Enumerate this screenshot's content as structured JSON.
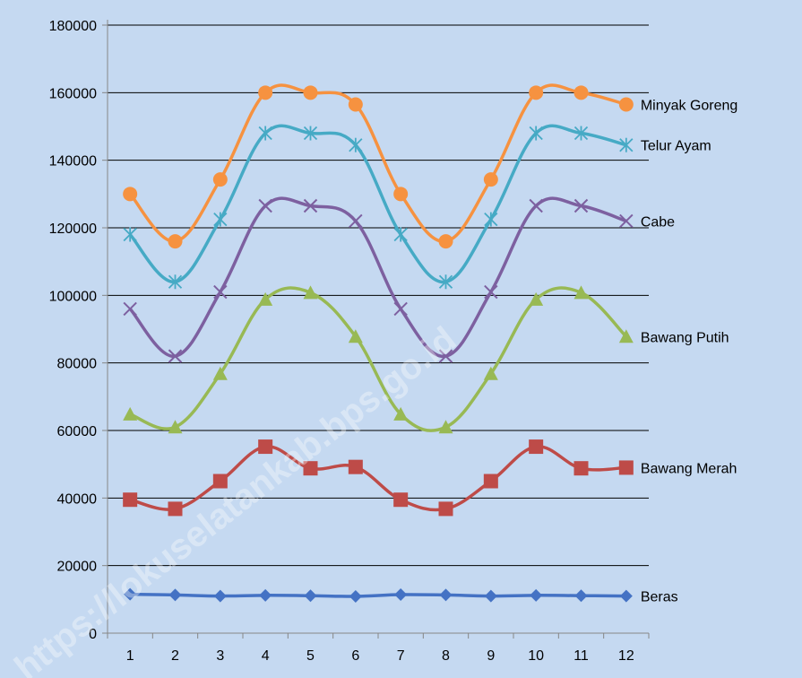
{
  "chart_data": {
    "type": "line",
    "x": [
      1,
      2,
      3,
      4,
      5,
      6,
      7,
      8,
      9,
      10,
      11,
      12
    ],
    "x_tick_labels": [
      "1",
      "2",
      "3",
      "4",
      "5",
      "6",
      "7",
      "8",
      "9",
      "10",
      "11",
      "12"
    ],
    "ylim": [
      0,
      180000
    ],
    "y_ticks": [
      0,
      20000,
      40000,
      60000,
      80000,
      100000,
      120000,
      140000,
      160000,
      180000
    ],
    "y_tick_labels": [
      "0",
      "20000",
      "40000",
      "60000",
      "80000",
      "100000",
      "120000",
      "140000",
      "160000",
      "180000"
    ],
    "grid": "horizontal",
    "smooth": true,
    "series": [
      {
        "name": "Beras",
        "color": "#4472c4",
        "marker": "diamond",
        "values": [
          11500,
          11300,
          11000,
          11200,
          11100,
          10900,
          11400,
          11300,
          11000,
          11200,
          11100,
          11000
        ]
      },
      {
        "name": "Bawang Merah",
        "color": "#be4b48",
        "marker": "square",
        "values": [
          39500,
          36800,
          45000,
          55200,
          48800,
          49200,
          39500,
          36800,
          45000,
          55200,
          48800,
          49000
        ]
      },
      {
        "name": "Bawang Putih",
        "color": "#98b954",
        "marker": "triangle",
        "values": [
          64800,
          61000,
          76800,
          98800,
          100800,
          87800,
          64800,
          61000,
          76800,
          98800,
          100800,
          87800
        ]
      },
      {
        "name": "Cabe",
        "color": "#7d60a0",
        "marker": "x",
        "values": [
          96000,
          82000,
          101000,
          126500,
          126500,
          122000,
          96000,
          82000,
          101000,
          126500,
          126500,
          122000
        ]
      },
      {
        "name": "Telur Ayam",
        "color": "#46aac5",
        "marker": "star",
        "values": [
          118000,
          104000,
          122500,
          148000,
          148000,
          144500,
          118000,
          104000,
          122500,
          148000,
          148000,
          144500
        ]
      },
      {
        "name": "Minyak Goreng",
        "color": "#f69240",
        "marker": "circle",
        "values": [
          130000,
          116000,
          134300,
          160000,
          160000,
          156500,
          130000,
          116000,
          134300,
          160000,
          160000,
          156500
        ]
      }
    ]
  },
  "style": {
    "background": "#c5d9f1",
    "gridline": "#000000",
    "axis": "#868686"
  },
  "watermark": {
    "text": "https://lokuselatankab.bps.go.id"
  }
}
